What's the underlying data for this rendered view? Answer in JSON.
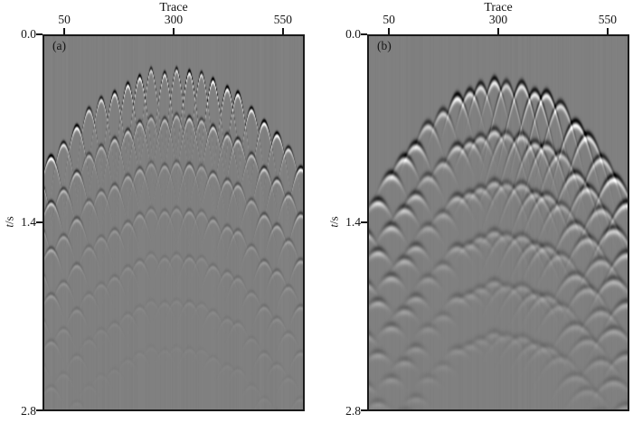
{
  "figure": {
    "background": "#ffffff",
    "border_color": "#1a1a1a",
    "panel_gray_level": 128
  },
  "chart_data": [
    {
      "type": "heatmap",
      "panel_label": "(a)",
      "xlabel": "Trace",
      "x_tick_labels": [
        "50",
        "300",
        "550"
      ],
      "x_tick_values": [
        50,
        300,
        550
      ],
      "x_range": [
        0,
        600
      ],
      "ylabel_var": "t",
      "ylabel_unit": "/s",
      "y_tick_labels": [
        "0.0",
        "1.4",
        "2.8"
      ],
      "y_range": [
        0.0,
        2.8
      ],
      "grid": false,
      "legend": false,
      "description": "Grayscale seismic record: periodic narrow diffraction hyperbolas whose onsets form a dome (apex near trace 300 at about t=0.27 s, deepening to about t=1.0 s at both edges), with vertically repeating, decaying arrivals below; sharp black caps with white flanks and steep thin tails fading out by about t=2.2 s.",
      "texture": {
        "seed": 7,
        "bg": 128,
        "contrast": 300,
        "col_noise": 4,
        "x0": -6,
        "spacing": 13.8,
        "jitter_x": 3,
        "jitter_y": 7,
        "apex_x": 142,
        "half_width": 143,
        "apex_y": 36,
        "edge_drop": 112,
        "rows": 7,
        "row_dy": 51,
        "row_decay": 0.56,
        "sigma": 2.6,
        "curvature": 80,
        "aperture": 7.5,
        "aperture_right": 7.5,
        "seam": 9999
      }
    },
    {
      "type": "heatmap",
      "panel_label": "(b)",
      "xlabel": "Trace",
      "x_tick_labels": [
        "50",
        "300",
        "550"
      ],
      "x_tick_values": [
        50,
        300,
        550
      ],
      "x_range": [
        0,
        600
      ],
      "ylabel_var": "t",
      "ylabel_unit": "/s",
      "y_tick_labels": [
        "0.0",
        "1.4",
        "2.8"
      ],
      "y_range": [
        0.0,
        2.8
      ],
      "grid": false,
      "legend": false,
      "description": "Same record after smearing/migration-style processing: broader overlapping parabolic arcs, dome apex slightly right of trace 300 at about t=0.35 s; wider smoother wavelets, arcs on the right half wider and brighter-filled, tails fading by about t=2.4 s.",
      "texture": {
        "seed": 21,
        "bg": 128,
        "contrast": 235,
        "col_noise": 4,
        "x0": -6,
        "spacing": 14.5,
        "jitter_x": 4,
        "jitter_y": 9,
        "apex_x": 148,
        "half_width": 150,
        "apex_y": 50,
        "edge_drop": 158,
        "rows": 6,
        "row_dy": 56,
        "row_decay": 0.66,
        "sigma": 4.2,
        "curvature": 26,
        "aperture": 9,
        "aperture_right": 15,
        "seam": 140
      }
    }
  ]
}
